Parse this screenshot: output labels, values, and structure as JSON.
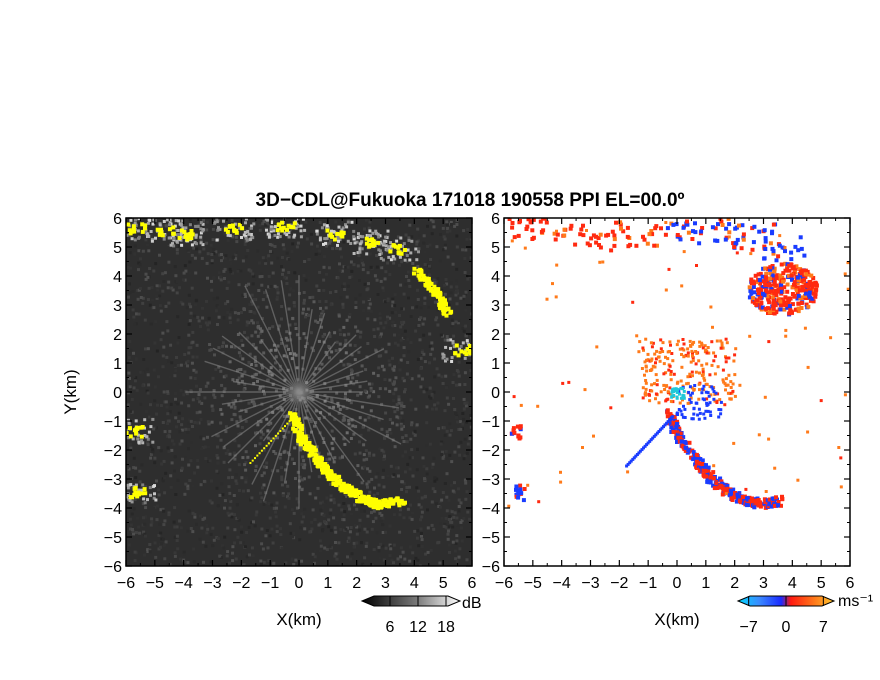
{
  "title": "3D−CDL@Fukuoka 171018 190558 PPI EL=00.0º",
  "chart_data": [
    {
      "type": "heatmap",
      "name": "reflectivity",
      "xlabel": "X(km)",
      "ylabel": "Y(km)",
      "xlim": [
        -6,
        6
      ],
      "ylim": [
        -6,
        6
      ],
      "x_ticks": [
        "−6",
        "−5",
        "−4",
        "−3",
        "−2",
        "−1",
        "0",
        "1",
        "2",
        "3",
        "4",
        "5",
        "6"
      ],
      "y_ticks": [
        "6",
        "5",
        "4",
        "3",
        "2",
        "1",
        "0",
        "−1",
        "−2",
        "−3",
        "−4",
        "−5",
        "−6"
      ],
      "background": "#2e2e2e",
      "highlight_color": "#ffff00",
      "colorbar": {
        "unit": "dB",
        "tick_labels": [
          "6",
          "12",
          "18"
        ],
        "ticks": [
          6,
          12,
          18
        ],
        "range": [
          0,
          21
        ]
      },
      "highlight_paths": [
        [
          [
            -0.3,
            -0.7
          ],
          [
            0.0,
            -1.5
          ],
          [
            0.6,
            -2.3
          ],
          [
            1.0,
            -2.8
          ],
          [
            1.6,
            -3.3
          ],
          [
            2.1,
            -3.6
          ],
          [
            2.7,
            -3.8
          ],
          [
            3.5,
            -3.7
          ]
        ],
        [
          [
            4.0,
            4.3
          ],
          [
            4.7,
            3.5
          ],
          [
            5.1,
            2.8
          ]
        ]
      ],
      "highlight_patches": [
        [
          -5.7,
          5.7
        ],
        [
          -4.7,
          5.6
        ],
        [
          -3.9,
          5.5
        ],
        [
          -2.3,
          5.7
        ],
        [
          -0.5,
          5.8
        ],
        [
          1.2,
          5.5
        ],
        [
          2.5,
          5.2
        ],
        [
          3.4,
          5.0
        ],
        [
          -5.8,
          -1.3
        ],
        [
          -5.7,
          -3.4
        ],
        [
          5.6,
          1.5
        ]
      ]
    },
    {
      "type": "heatmap",
      "name": "doppler-velocity",
      "xlabel": "X(km)",
      "xlim": [
        -6,
        6
      ],
      "ylim": [
        -6,
        6
      ],
      "x_ticks": [
        "−6",
        "−5",
        "−4",
        "−3",
        "−2",
        "−1",
        "0",
        "1",
        "2",
        "3",
        "4",
        "5",
        "6"
      ],
      "y_ticks": [
        "6",
        "5",
        "4",
        "3",
        "2",
        "1",
        "0",
        "−1",
        "−2",
        "−3",
        "−4",
        "−5",
        "−6"
      ],
      "background": "#ffffff",
      "colors": {
        "approaching": "#1a3cff",
        "receding": "#ff2a10",
        "weak_receding": "#ff7a1a",
        "near_zero": "#20c8d8"
      },
      "colorbar": {
        "unit": "ms⁻¹",
        "tick_labels": [
          "−7",
          "0",
          "7"
        ],
        "ticks": [
          -7,
          0,
          7
        ],
        "range": [
          -9,
          9
        ]
      },
      "red_blue_path": [
        [
          -0.3,
          -0.7
        ],
        [
          0.0,
          -1.5
        ],
        [
          0.6,
          -2.3
        ],
        [
          1.0,
          -2.8
        ],
        [
          1.6,
          -3.3
        ],
        [
          2.1,
          -3.6
        ],
        [
          2.7,
          -3.8
        ],
        [
          3.5,
          -3.7
        ]
      ],
      "blue_line": [
        [
          -0.2,
          -0.8
        ],
        [
          -1.8,
          -2.5
        ]
      ],
      "top_band": [
        [
          -5.8,
          5.6
        ],
        [
          -4.5,
          5.7
        ],
        [
          -3.0,
          5.4
        ],
        [
          -1.5,
          5.5
        ],
        [
          0.0,
          5.6
        ],
        [
          1.5,
          5.6
        ],
        [
          2.6,
          5.4
        ],
        [
          3.6,
          5.0
        ]
      ],
      "storm_patch": {
        "x": 3.6,
        "y": 3.6,
        "rx": 1.2,
        "ry": 0.9
      }
    }
  ]
}
